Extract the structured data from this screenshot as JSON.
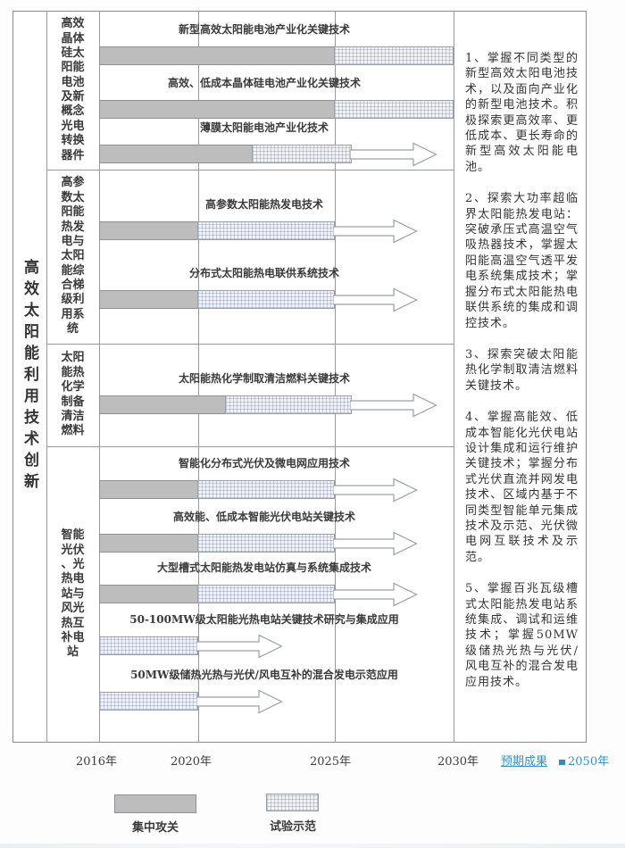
{
  "chart": {
    "title": "高效太阳能利用技术创新",
    "sections": [
      {
        "label": "高效晶体硅太阳能电池及新概念光电转换器件",
        "rows": [
          {
            "label": "新型高效太阳能电池产业化关键技术",
            "focus": [
              2016,
              2025
            ],
            "pilot": [
              2025,
              2030
            ],
            "arrow_to": null
          },
          {
            "label": "高效、低成本晶体硅电池产业化关键技术",
            "focus": [
              2016,
              2025
            ],
            "pilot": [
              2025,
              2030
            ],
            "arrow_to": null
          },
          {
            "label": "薄膜太阳能电池产业化技术",
            "focus": [
              2016,
              2022
            ],
            "pilot": [
              2022,
              2025.7
            ],
            "arrow_to": 2029.3
          }
        ]
      },
      {
        "label": "高参数太阳能热发电与太阳能综合梯级利用系统",
        "rows": [
          {
            "label": "高参数太阳能热发电技术",
            "focus": [
              2016,
              2020
            ],
            "pilot": [
              2020,
              2025
            ],
            "arrow_to": 2028.5
          },
          {
            "label": "分布式太阳能热电联供系统技术",
            "focus": [
              2016,
              2020
            ],
            "pilot": [
              2020,
              2025
            ],
            "arrow_to": 2028.5
          }
        ]
      },
      {
        "label": "太阳能热化学制备清洁燃料",
        "rows": [
          {
            "label": "太阳能热化学制取清洁燃料关键技术",
            "focus": [
              2016,
              2021
            ],
            "pilot": [
              2021,
              2025.7
            ],
            "arrow_to": 2029.3
          }
        ]
      },
      {
        "label": "智能光伏、光热电站与风光热互补电站",
        "rows": [
          {
            "label": "智能化分布式光伏及微电网应用技术",
            "focus": [
              2016,
              2020
            ],
            "pilot": [
              2020,
              2025
            ],
            "arrow_to": 2028.5
          },
          {
            "label": "高效能、低成本智能光伏电站关键技术",
            "focus": [
              2016,
              2020
            ],
            "pilot": [
              2020,
              2025
            ],
            "arrow_to": 2028.5
          },
          {
            "label": "大型槽式太阳能热发电站仿真与系统集成技术",
            "focus": [
              2016,
              2020
            ],
            "pilot": [
              2020,
              2025
            ],
            "arrow_to": 2028.5
          },
          {
            "label": "50-100MW级太阳能光热电站关键技术研究与集成应用",
            "focus": null,
            "pilot": [
              2016,
              2020
            ],
            "arrow_to": 2023.1
          },
          {
            "label": "50MW级储热光热与光伏/风电互补的混合发电示范应用",
            "focus": null,
            "pilot": [
              2016,
              2020
            ],
            "arrow_to": 2023.1
          }
        ]
      }
    ],
    "timeline": [
      "2016年",
      "2020年",
      "2025年",
      "2030年"
    ],
    "timeline_extra": {
      "expected_label": "预期成果",
      "end_year": "2050年"
    }
  },
  "notes": [
    "1、掌握不同类型的新型高效太阳电池技术，以及面向产业化的新型电池技术。积极探索更高效率、更低成本、更长寿命的新型高效太阳能电池。",
    "2、探索大功率超临界太阳能热发电站：突破承压式高温空气吸热器技术，掌握太阳能高温空气透平发电系统集成技术；掌握分布式太阳能热电联供系统的集成和调控技术。",
    "3、探索突破太阳能热化学制取清洁燃料关键技术。",
    "4、掌握高能效、低成本智能化光伏电站设计集成和运行维护关键技术；掌握分布式光伏直流并网发电技术、区域内基于不同类型智能单元集成技术及示范、光伏微电网互联技术及示范。",
    "5、掌握百兆瓦级槽式太阳能热发电站系统集成、调试和运维技术；掌握50MW级储热光热与光伏/风电互补的混合发电应用技术。"
  ],
  "legend": {
    "focus_label": "集中攻关",
    "pilot_label": "试验示范"
  },
  "colors": {
    "focus_fill": "#bdbdbd",
    "pilot_fill": "#f1f2f7",
    "accent_blue": "#3693c8",
    "grid_line": "#97999c"
  }
}
